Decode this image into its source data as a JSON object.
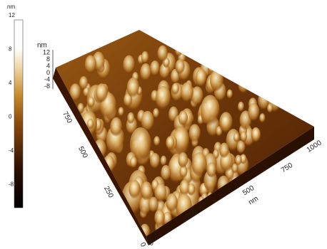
{
  "colorbar": {
    "unit": "nm",
    "ticks": [
      "12",
      "8",
      "4",
      "0",
      "-4",
      "-8"
    ]
  },
  "z_axis": {
    "unit": "nm",
    "ticks": [
      "12",
      "8",
      "4",
      "0",
      "-4",
      "-8"
    ]
  },
  "x_axis": {
    "unit": "nm",
    "ticks": [
      "0",
      "250",
      "500",
      "750",
      "1000"
    ]
  },
  "y_axis": {
    "ticks": [
      "0",
      "250",
      "500",
      "750"
    ]
  }
}
